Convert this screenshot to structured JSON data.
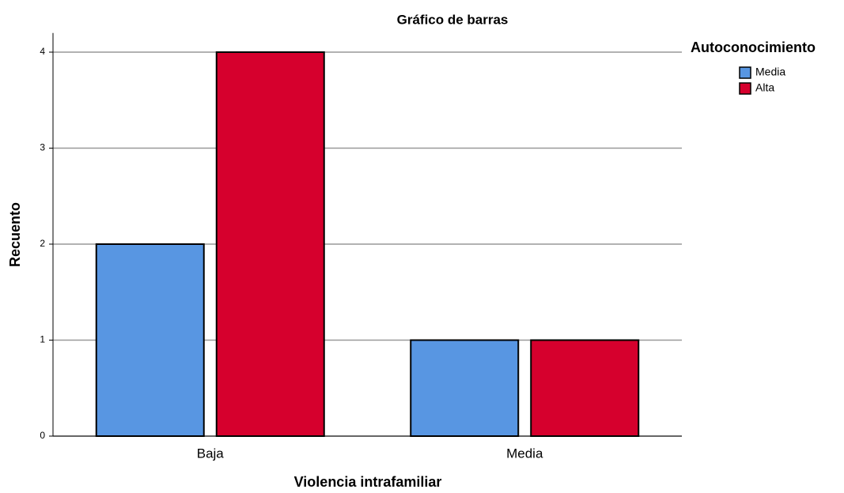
{
  "chart_data": {
    "type": "bar",
    "title": "Gráfico de barras",
    "x_label": "Violencia intrafamiliar",
    "y_label": "Recuento",
    "legend_title": "Autoconocimiento",
    "legend_position": "upper right outside",
    "categories": [
      "Baja",
      "Media"
    ],
    "series": [
      {
        "name": "Media",
        "color": "#5896e2",
        "values": [
          2,
          1
        ]
      },
      {
        "name": "Alta",
        "color": "#d6002d",
        "values": [
          4,
          1
        ]
      }
    ],
    "ylim": [
      0,
      4.2
    ],
    "yticks": [
      0,
      1,
      2,
      3,
      4
    ],
    "grid": true
  }
}
